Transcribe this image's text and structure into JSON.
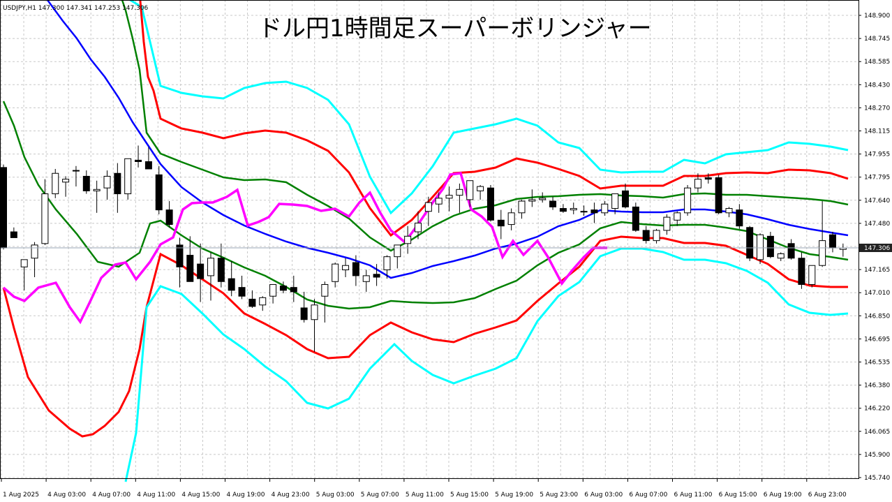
{
  "header": {
    "symbol_info": "USDJPY,H1  147.300 147.341 147.253 147.306",
    "title": "ドル円1時間足スーパーボリンジャー"
  },
  "current_price": "147.306",
  "colors": {
    "background": "#ffffff",
    "grid": "#c8c8c8",
    "bullish_candle": "#ffffff",
    "bearish_candle": "#000000",
    "sma": "#0000ff",
    "sigma1": "#008000",
    "sigma2": "#ff0000",
    "sigma3": "#00ffff",
    "lagging_span": "#ff00ff"
  },
  "chart_data": {
    "type": "candlestick",
    "title": "ドル円1時間足スーパーボリンジャー",
    "symbol": "USDJPY,H1",
    "ylim": [
      145.74,
      148.96
    ],
    "y_ticks": [
      "148.900",
      "148.745",
      "148.585",
      "148.430",
      "148.270",
      "148.115",
      "147.955",
      "147.795",
      "147.640",
      "147.480",
      "147.325",
      "147.165",
      "147.010",
      "146.850",
      "146.695",
      "146.535",
      "146.380",
      "146.220",
      "146.065",
      "145.900",
      "145.740"
    ],
    "x_labels": [
      "1 Aug 2025",
      "4 Aug 03:00",
      "4 Aug 07:00",
      "4 Aug 11:00",
      "4 Aug 15:00",
      "4 Aug 19:00",
      "4 Aug 23:00",
      "5 Aug 03:00",
      "5 Aug 07:00",
      "5 Aug 11:00",
      "5 Aug 15:00",
      "5 Aug 19:00",
      "5 Aug 23:00",
      "6 Aug 03:00",
      "6 Aug 07:00",
      "6 Aug 11:00",
      "6 Aug 15:00",
      "6 Aug 19:00",
      "6 Aug 23:00"
    ],
    "candles": [
      [
        147.86,
        147.88,
        147.3,
        147.31
      ],
      [
        147.42,
        147.45,
        147.38,
        147.38
      ],
      [
        147.18,
        147.23,
        147.02,
        147.23
      ],
      [
        147.24,
        147.35,
        147.11,
        147.33
      ],
      [
        147.34,
        147.78,
        147.33,
        147.68
      ],
      [
        147.68,
        147.85,
        147.65,
        147.82
      ],
      [
        147.76,
        147.8,
        147.66,
        147.78
      ],
      [
        147.84,
        147.87,
        147.73,
        147.84
      ],
      [
        147.8,
        147.84,
        147.68,
        147.7
      ],
      [
        147.7,
        147.77,
        147.55,
        147.71
      ],
      [
        147.72,
        147.84,
        147.64,
        147.8
      ],
      [
        147.82,
        147.89,
        147.55,
        147.68
      ],
      [
        147.68,
        147.92,
        147.64,
        147.92
      ],
      [
        147.91,
        148.01,
        147.86,
        147.9
      ],
      [
        147.9,
        148.0,
        147.85,
        147.85
      ],
      [
        147.81,
        147.87,
        147.54,
        147.57
      ],
      [
        147.57,
        147.63,
        147.45,
        147.47
      ],
      [
        147.33,
        147.38,
        147.04,
        147.18
      ],
      [
        147.26,
        147.39,
        147.08,
        147.08
      ],
      [
        147.2,
        147.34,
        146.94,
        147.1
      ],
      [
        147.12,
        147.28,
        146.95,
        147.24
      ],
      [
        147.24,
        147.34,
        147.04,
        147.08
      ],
      [
        147.1,
        147.22,
        146.98,
        147.02
      ],
      [
        147.04,
        147.12,
        146.96,
        146.98
      ],
      [
        146.96,
        147.02,
        146.9,
        146.91
      ],
      [
        146.92,
        146.98,
        146.88,
        146.97
      ],
      [
        146.98,
        147.06,
        146.93,
        147.06
      ],
      [
        147.05,
        147.08,
        147.0,
        147.02
      ],
      [
        147.04,
        147.12,
        146.94,
        147.01
      ],
      [
        146.9,
        147.01,
        146.8,
        146.82
      ],
      [
        146.82,
        146.96,
        146.6,
        146.92
      ],
      [
        146.98,
        147.08,
        146.8,
        147.06
      ],
      [
        147.08,
        147.21,
        147.04,
        147.2
      ],
      [
        147.16,
        147.24,
        147.11,
        147.19
      ],
      [
        147.21,
        147.26,
        147.05,
        147.12
      ],
      [
        147.08,
        147.16,
        147.01,
        147.12
      ],
      [
        147.13,
        147.2,
        147.05,
        147.11
      ],
      [
        147.16,
        147.26,
        147.1,
        147.25
      ],
      [
        147.25,
        147.33,
        147.17,
        147.33
      ],
      [
        147.34,
        147.46,
        147.27,
        147.39
      ],
      [
        147.42,
        147.56,
        147.37,
        147.48
      ],
      [
        147.56,
        147.66,
        147.46,
        147.62
      ],
      [
        147.61,
        147.69,
        147.55,
        147.65
      ],
      [
        147.65,
        147.73,
        147.56,
        147.67
      ],
      [
        147.67,
        147.75,
        147.55,
        147.71
      ],
      [
        147.64,
        147.77,
        147.59,
        147.77
      ],
      [
        147.7,
        147.74,
        147.64,
        147.73
      ],
      [
        147.72,
        147.74,
        147.49,
        147.5
      ],
      [
        147.5,
        147.57,
        147.37,
        147.46
      ],
      [
        147.47,
        147.58,
        147.43,
        147.55
      ],
      [
        147.55,
        147.64,
        147.51,
        147.63
      ],
      [
        147.63,
        147.71,
        147.59,
        147.64
      ],
      [
        147.64,
        147.69,
        147.62,
        147.65
      ],
      [
        147.63,
        147.66,
        147.57,
        147.59
      ],
      [
        147.58,
        147.61,
        147.55,
        147.56
      ],
      [
        147.57,
        147.62,
        147.54,
        147.58
      ],
      [
        147.56,
        147.6,
        147.53,
        147.56
      ],
      [
        147.57,
        147.62,
        147.48,
        147.55
      ],
      [
        147.55,
        147.63,
        147.53,
        147.61
      ],
      [
        147.58,
        147.68,
        147.54,
        147.68
      ],
      [
        147.7,
        147.75,
        147.58,
        147.59
      ],
      [
        147.59,
        147.62,
        147.42,
        147.43
      ],
      [
        147.43,
        147.46,
        147.34,
        147.36
      ],
      [
        147.36,
        147.44,
        147.34,
        147.43
      ],
      [
        147.43,
        147.54,
        147.4,
        147.52
      ],
      [
        147.5,
        147.56,
        147.46,
        147.55
      ],
      [
        147.55,
        147.74,
        147.53,
        147.72
      ],
      [
        147.72,
        147.82,
        147.69,
        147.78
      ],
      [
        147.79,
        147.82,
        147.75,
        147.78
      ],
      [
        147.79,
        147.81,
        147.54,
        147.55
      ],
      [
        147.55,
        147.59,
        147.52,
        147.58
      ],
      [
        147.57,
        147.61,
        147.44,
        147.46
      ],
      [
        147.45,
        147.46,
        147.22,
        147.24
      ],
      [
        147.23,
        147.41,
        147.2,
        147.4
      ],
      [
        147.39,
        147.42,
        147.24,
        147.25
      ],
      [
        147.24,
        147.28,
        147.22,
        147.27
      ],
      [
        147.34,
        147.37,
        147.23,
        147.24
      ],
      [
        147.24,
        147.28,
        147.03,
        147.06
      ],
      [
        147.06,
        147.19,
        147.04,
        147.19
      ],
      [
        147.19,
        147.63,
        147.18,
        147.36
      ],
      [
        147.4,
        147.42,
        147.28,
        147.31
      ],
      [
        147.3,
        147.34,
        147.25,
        147.31
      ]
    ],
    "sma": [
      148.96,
      148.81,
      148.66,
      148.51,
      148.36,
      148.2,
      148.05,
      147.95,
      147.84,
      147.78,
      147.72,
      147.67,
      147.62,
      147.58,
      147.53,
      147.5,
      147.47,
      147.44,
      147.41,
      147.38,
      147.35,
      147.32,
      147.29,
      147.27,
      147.24,
      147.21,
      147.18,
      147.16,
      147.14,
      147.13,
      147.13,
      147.16,
      147.2,
      147.24,
      147.28,
      147.32,
      147.36,
      147.4,
      147.45,
      147.49,
      147.54,
      147.57,
      147.61,
      147.59,
      147.57,
      147.56,
      147.57,
      147.56,
      147.55,
      147.54,
      147.53,
      147.52,
      147.48,
      147.44,
      147.4
    ],
    "sigma1_upper": [
      149.7,
      149.3,
      148.8,
      148.1,
      147.9,
      147.85,
      147.82,
      147.78,
      147.76,
      147.75,
      147.73,
      147.69,
      147.64,
      147.59,
      147.52,
      147.46,
      147.38,
      147.3,
      147.25,
      147.2,
      147.17,
      147.17,
      147.24,
      147.31,
      147.39,
      147.43,
      147.49,
      147.52,
      147.57,
      147.6,
      147.63,
      147.65,
      147.67,
      147.68,
      147.69,
      147.7,
      147.7,
      147.7,
      147.71,
      147.71,
      147.7,
      147.69,
      147.69,
      147.7,
      147.7,
      147.69,
      147.68,
      147.67,
      147.62
    ],
    "sigma1_lower": [
      148.34,
      148.0,
      147.69,
      147.5,
      147.32,
      147.2,
      147.15,
      147.15,
      147.25,
      147.48,
      147.5,
      147.43,
      147.36,
      147.28,
      147.21,
      147.15,
      147.1,
      147.04,
      146.99,
      146.96,
      146.93,
      146.92,
      146.94,
      146.95,
      146.93,
      146.93,
      146.93,
      146.94,
      146.98,
      147.03,
      147.08,
      147.13,
      147.19,
      147.26,
      147.33,
      147.41,
      147.46,
      147.48,
      147.49,
      147.49,
      147.49,
      147.48,
      147.48,
      147.45,
      147.43,
      147.37,
      147.31,
      147.27,
      147.25
    ]
  }
}
